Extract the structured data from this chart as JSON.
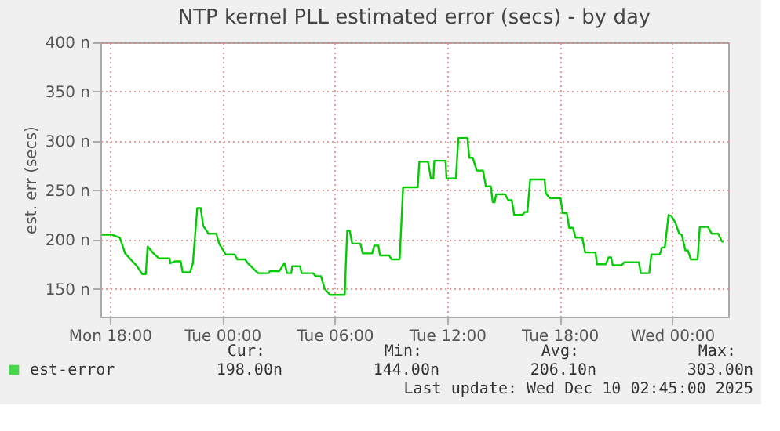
{
  "chart_data": {
    "type": "line",
    "title": "NTP kernel PLL estimated error (secs) - by day",
    "ylabel": "est. err (secs)",
    "xlim": [
      "2025-12-08T17:30",
      "2025-12-10T03:00"
    ],
    "ylim": [
      122,
      400
    ],
    "xticks": [
      {
        "value": "2025-12-08T18:00",
        "label": "Mon 18:00"
      },
      {
        "value": "2025-12-09T00:00",
        "label": "Tue 00:00"
      },
      {
        "value": "2025-12-09T06:00",
        "label": "Tue 06:00"
      },
      {
        "value": "2025-12-09T12:00",
        "label": "Tue 12:00"
      },
      {
        "value": "2025-12-09T18:00",
        "label": "Tue 18:00"
      },
      {
        "value": "2025-12-10T00:00",
        "label": "Wed 00:00"
      }
    ],
    "yticks": [
      {
        "value": 150,
        "label": "150 n"
      },
      {
        "value": 200,
        "label": "200 n"
      },
      {
        "value": 250,
        "label": "250 n"
      },
      {
        "value": 300,
        "label": "300 n"
      },
      {
        "value": 350,
        "label": "350 n"
      },
      {
        "value": 400,
        "label": "400 n"
      }
    ],
    "grid": true,
    "legend": "bottom",
    "series": [
      {
        "name": "est-error",
        "color": "#00cc00",
        "x": [
          "2025-12-08T17:34",
          "2025-12-08T18:07",
          "2025-12-08T18:32",
          "2025-12-08T18:49",
          "2025-12-08T19:27",
          "2025-12-08T19:44",
          "2025-12-08T19:55",
          "2025-12-08T20:01",
          "2025-12-08T20:20",
          "2025-12-08T20:37",
          "2025-12-08T21:11",
          "2025-12-08T21:14",
          "2025-12-08T21:28",
          "2025-12-08T21:47",
          "2025-12-08T21:53",
          "2025-12-08T22:17",
          "2025-12-08T22:26",
          "2025-12-08T22:40",
          "2025-12-08T22:51",
          "2025-12-08T22:59",
          "2025-12-08T23:16",
          "2025-12-08T23:41",
          "2025-12-08T23:50",
          "2025-12-09T00:11",
          "2025-12-09T00:40",
          "2025-12-09T00:48",
          "2025-12-09T01:13",
          "2025-12-09T01:22",
          "2025-12-09T01:55",
          "2025-12-09T02:29",
          "2025-12-09T02:32",
          "2025-12-09T03:02",
          "2025-12-09T03:19",
          "2025-12-09T03:28",
          "2025-12-09T03:41",
          "2025-12-09T03:44",
          "2025-12-09T04:09",
          "2025-12-09T04:14",
          "2025-12-09T04:51",
          "2025-12-09T04:59",
          "2025-12-09T05:16",
          "2025-12-09T05:28",
          "2025-12-09T05:46",
          "2025-12-09T06:32",
          "2025-12-09T06:40",
          "2025-12-09T06:48",
          "2025-12-09T06:56",
          "2025-12-09T07:22",
          "2025-12-09T07:30",
          "2025-12-09T08:00",
          "2025-12-09T08:07",
          "2025-12-09T08:20",
          "2025-12-09T08:25",
          "2025-12-09T08:54",
          "2025-12-09T09:02",
          "2025-12-09T09:28",
          "2025-12-09T09:39",
          "2025-12-09T10:26",
          "2025-12-09T10:31",
          "2025-12-09T10:59",
          "2025-12-09T11:08",
          "2025-12-09T11:16",
          "2025-12-09T11:19",
          "2025-12-09T11:55",
          "2025-12-09T11:58",
          "2025-12-09T12:28",
          "2025-12-09T12:36",
          "2025-12-09T13:05",
          "2025-12-09T13:11",
          "2025-12-09T13:22",
          "2025-12-09T13:35",
          "2025-12-09T13:55",
          "2025-12-09T14:04",
          "2025-12-09T14:20",
          "2025-12-09T14:26",
          "2025-12-09T14:32",
          "2025-12-09T14:37",
          "2025-12-09T15:05",
          "2025-12-09T15:16",
          "2025-12-09T15:27",
          "2025-12-09T15:35",
          "2025-12-09T16:01",
          "2025-12-09T16:09",
          "2025-12-09T16:17",
          "2025-12-09T16:26",
          "2025-12-09T17:12",
          "2025-12-09T17:16",
          "2025-12-09T17:29",
          "2025-12-09T18:03",
          "2025-12-09T18:10",
          "2025-12-09T18:23",
          "2025-12-09T18:31",
          "2025-12-09T18:43",
          "2025-12-09T18:51",
          "2025-12-09T19:13",
          "2025-12-09T19:22",
          "2025-12-09T19:55",
          "2025-12-09T20:00",
          "2025-12-09T20:28",
          "2025-12-09T20:37",
          "2025-12-09T20:45",
          "2025-12-09T20:50",
          "2025-12-09T21:19",
          "2025-12-09T21:27",
          "2025-12-09T22:14",
          "2025-12-09T22:20",
          "2025-12-09T22:47",
          "2025-12-09T22:54",
          "2025-12-09T23:21",
          "2025-12-09T23:28",
          "2025-12-09T23:37",
          "2025-12-09T23:49",
          "2025-12-09T23:58",
          "2025-12-10T00:11",
          "2025-12-10T00:23",
          "2025-12-10T00:31",
          "2025-12-10T00:43",
          "2025-12-10T00:51",
          "2025-12-10T01:00",
          "2025-12-10T01:22",
          "2025-12-10T01:29",
          "2025-12-10T01:55",
          "2025-12-10T02:07",
          "2025-12-10T02:28",
          "2025-12-10T02:40",
          "2025-12-10T02:45"
        ],
        "values": [
          205,
          205,
          202,
          186,
          173,
          165,
          165,
          193,
          186,
          181,
          181,
          176,
          178,
          178,
          167,
          167,
          176,
          232,
          232,
          214,
          206,
          206,
          196,
          185,
          185,
          180,
          180,
          176,
          166,
          166,
          168,
          168,
          176,
          166,
          166,
          173,
          173,
          166,
          166,
          163,
          163,
          150,
          144,
          144,
          209,
          209,
          196,
          196,
          186,
          186,
          194,
          194,
          184,
          184,
          180,
          180,
          253,
          253,
          279,
          279,
          262,
          262,
          280,
          280,
          262,
          262,
          303,
          303,
          283,
          283,
          270,
          270,
          254,
          254,
          238,
          238,
          246,
          246,
          240,
          240,
          225,
          225,
          228,
          228,
          261,
          261,
          247,
          242,
          242,
          227,
          227,
          212,
          212,
          202,
          202,
          187,
          187,
          175,
          175,
          182,
          182,
          174,
          174,
          177,
          177,
          166,
          166,
          185,
          185,
          192,
          192,
          225,
          224,
          217,
          206,
          205,
          189,
          189,
          180,
          180,
          213,
          213,
          206,
          206,
          198,
          198
        ]
      }
    ],
    "annotations": [
      "Cur:",
      "198.00n",
      "Min:",
      "144.00n",
      "Avg:",
      "206.10n",
      "Max:",
      "303.00n",
      "Last update: Wed Dec 10 02:45:00 2025"
    ]
  }
}
